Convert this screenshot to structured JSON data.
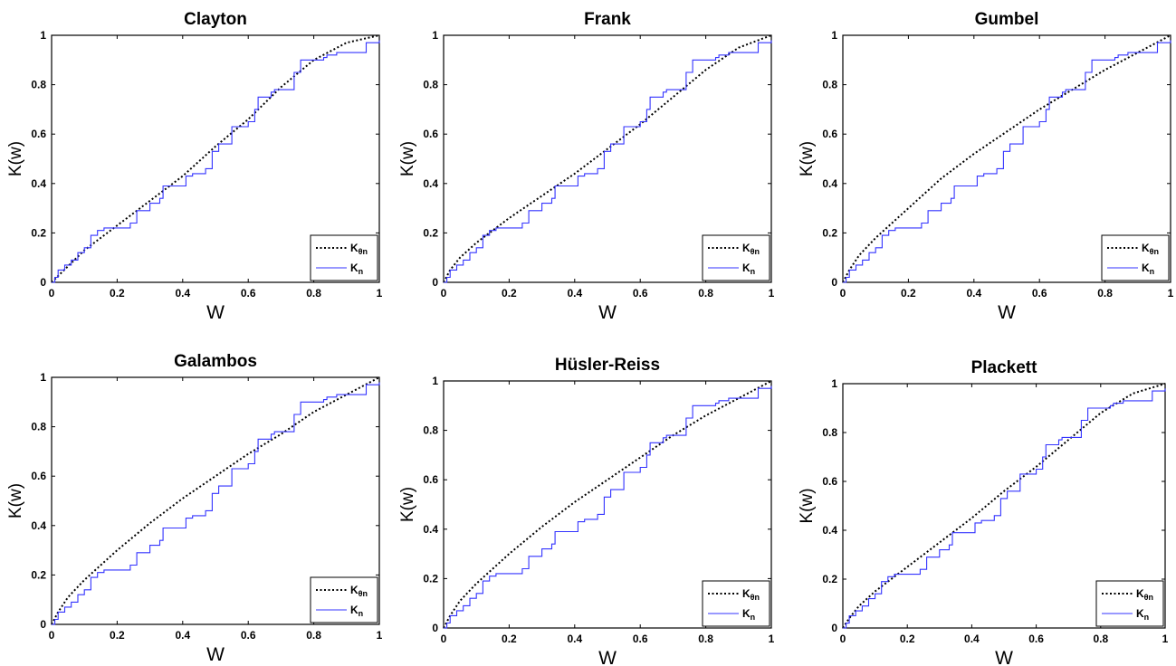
{
  "chart_data": [
    {
      "type": "line",
      "title": "Clayton",
      "xlabel": "W",
      "ylabel": "K(w)",
      "xlim": [
        0,
        1
      ],
      "ylim": [
        0,
        1
      ],
      "xticks": [
        "0",
        "0.2",
        "0.4",
        "0.6",
        "0.8",
        "1"
      ],
      "yticks": [
        "0",
        "0.2",
        "0.4",
        "0.6",
        "0.8",
        "1"
      ],
      "legend_position": "bottom-right",
      "series": [
        {
          "name": "K_θn",
          "style": "dotted",
          "color": "#000000",
          "x": [
            0,
            0.1,
            0.2,
            0.3,
            0.4,
            0.5,
            0.6,
            0.7,
            0.8,
            0.9,
            1
          ],
          "y": [
            0,
            0.13,
            0.23,
            0.33,
            0.43,
            0.55,
            0.66,
            0.79,
            0.9,
            0.97,
            1
          ]
        },
        {
          "name": "K_n",
          "style": "step",
          "color": "#3333ff",
          "x": [
            0,
            0.01,
            0.02,
            0.04,
            0.06,
            0.08,
            0.1,
            0.12,
            0.14,
            0.16,
            0.24,
            0.26,
            0.3,
            0.33,
            0.34,
            0.41,
            0.43,
            0.47,
            0.49,
            0.51,
            0.55,
            0.58,
            0.6,
            0.62,
            0.63,
            0.67,
            0.68,
            0.72,
            0.74,
            0.76,
            0.8,
            0.83,
            0.84,
            0.87,
            0.88,
            0.96,
            1
          ],
          "y": [
            0,
            0.02,
            0.05,
            0.07,
            0.09,
            0.12,
            0.14,
            0.19,
            0.21,
            0.22,
            0.24,
            0.29,
            0.32,
            0.34,
            0.39,
            0.43,
            0.44,
            0.46,
            0.53,
            0.56,
            0.63,
            0.63,
            0.65,
            0.7,
            0.75,
            0.77,
            0.78,
            0.78,
            0.85,
            0.9,
            0.9,
            0.91,
            0.92,
            0.93,
            0.93,
            0.97,
            0.98
          ]
        }
      ]
    },
    {
      "type": "line",
      "title": "Frank",
      "xlabel": "W",
      "ylabel": "K(w)",
      "xlim": [
        0,
        1
      ],
      "ylim": [
        0,
        1
      ],
      "xticks": [
        "0",
        "0.2",
        "0.4",
        "0.6",
        "0.8",
        "1"
      ],
      "yticks": [
        "0",
        "0.2",
        "0.4",
        "0.6",
        "0.8",
        "1"
      ],
      "legend_position": "bottom-right",
      "series": [
        {
          "name": "K_θn",
          "style": "dotted",
          "color": "#000000",
          "x": [
            0,
            0.02,
            0.05,
            0.1,
            0.2,
            0.3,
            0.4,
            0.5,
            0.6,
            0.7,
            0.8,
            0.9,
            1
          ],
          "y": [
            0,
            0.05,
            0.1,
            0.16,
            0.26,
            0.35,
            0.44,
            0.54,
            0.64,
            0.75,
            0.86,
            0.95,
            1
          ]
        },
        {
          "name": "K_n",
          "style": "step",
          "color": "#3333ff",
          "x": [
            0,
            0.01,
            0.02,
            0.04,
            0.06,
            0.08,
            0.1,
            0.12,
            0.14,
            0.16,
            0.24,
            0.26,
            0.3,
            0.33,
            0.34,
            0.41,
            0.43,
            0.47,
            0.49,
            0.51,
            0.55,
            0.58,
            0.6,
            0.62,
            0.63,
            0.67,
            0.68,
            0.72,
            0.74,
            0.76,
            0.8,
            0.83,
            0.84,
            0.87,
            0.88,
            0.96,
            1
          ],
          "y": [
            0,
            0.02,
            0.05,
            0.07,
            0.09,
            0.12,
            0.14,
            0.19,
            0.21,
            0.22,
            0.24,
            0.29,
            0.32,
            0.34,
            0.39,
            0.43,
            0.44,
            0.46,
            0.53,
            0.56,
            0.63,
            0.63,
            0.65,
            0.7,
            0.75,
            0.77,
            0.78,
            0.78,
            0.85,
            0.9,
            0.9,
            0.91,
            0.92,
            0.93,
            0.93,
            0.97,
            0.98
          ]
        }
      ]
    },
    {
      "type": "line",
      "title": "Gumbel",
      "xlabel": "W",
      "ylabel": "K(w)",
      "xlim": [
        0,
        1
      ],
      "ylim": [
        0,
        1
      ],
      "xticks": [
        "0",
        "0.2",
        "0.4",
        "0.6",
        "0.8",
        "1"
      ],
      "yticks": [
        "0",
        "0.2",
        "0.4",
        "0.6",
        "0.8",
        "1"
      ],
      "legend_position": "bottom-right",
      "series": [
        {
          "name": "K_θn",
          "style": "dotted",
          "color": "#000000",
          "x": [
            0,
            0.02,
            0.05,
            0.1,
            0.2,
            0.3,
            0.4,
            0.5,
            0.6,
            0.7,
            0.8,
            0.9,
            1
          ],
          "y": [
            0,
            0.05,
            0.11,
            0.18,
            0.3,
            0.42,
            0.52,
            0.61,
            0.7,
            0.78,
            0.86,
            0.93,
            1
          ]
        },
        {
          "name": "K_n",
          "style": "step",
          "color": "#3333ff",
          "x": [
            0,
            0.01,
            0.02,
            0.04,
            0.06,
            0.08,
            0.1,
            0.12,
            0.14,
            0.16,
            0.24,
            0.26,
            0.3,
            0.33,
            0.34,
            0.41,
            0.43,
            0.47,
            0.49,
            0.51,
            0.55,
            0.58,
            0.6,
            0.62,
            0.63,
            0.67,
            0.68,
            0.72,
            0.74,
            0.76,
            0.8,
            0.83,
            0.84,
            0.87,
            0.88,
            0.96,
            1
          ],
          "y": [
            0,
            0.02,
            0.05,
            0.07,
            0.09,
            0.12,
            0.14,
            0.19,
            0.21,
            0.22,
            0.24,
            0.29,
            0.32,
            0.34,
            0.39,
            0.43,
            0.44,
            0.46,
            0.53,
            0.56,
            0.63,
            0.63,
            0.65,
            0.7,
            0.75,
            0.77,
            0.78,
            0.78,
            0.85,
            0.9,
            0.9,
            0.91,
            0.92,
            0.93,
            0.93,
            0.97,
            0.98
          ]
        }
      ]
    },
    {
      "type": "line",
      "title": "Galambos",
      "xlabel": "W",
      "ylabel": "K(w)",
      "xlim": [
        0,
        1
      ],
      "ylim": [
        0,
        1
      ],
      "xticks": [
        "0",
        "0.2",
        "0.4",
        "0.6",
        "0.8",
        "1"
      ],
      "yticks": [
        "0",
        "0.2",
        "0.4",
        "0.6",
        "0.8",
        "1"
      ],
      "legend_position": "bottom-right",
      "series": [
        {
          "name": "K_θn",
          "style": "dotted",
          "color": "#000000",
          "x": [
            0,
            0.02,
            0.05,
            0.1,
            0.2,
            0.3,
            0.4,
            0.5,
            0.6,
            0.7,
            0.8,
            0.9,
            1
          ],
          "y": [
            0,
            0.05,
            0.11,
            0.18,
            0.3,
            0.41,
            0.51,
            0.6,
            0.69,
            0.77,
            0.86,
            0.93,
            1
          ]
        },
        {
          "name": "K_n",
          "style": "step",
          "color": "#3333ff",
          "x": [
            0,
            0.01,
            0.02,
            0.04,
            0.06,
            0.08,
            0.1,
            0.12,
            0.14,
            0.16,
            0.24,
            0.26,
            0.3,
            0.33,
            0.34,
            0.41,
            0.43,
            0.47,
            0.49,
            0.51,
            0.55,
            0.58,
            0.6,
            0.62,
            0.63,
            0.67,
            0.68,
            0.72,
            0.74,
            0.76,
            0.8,
            0.83,
            0.84,
            0.87,
            0.88,
            0.96,
            1
          ],
          "y": [
            0,
            0.02,
            0.05,
            0.07,
            0.09,
            0.12,
            0.14,
            0.19,
            0.21,
            0.22,
            0.24,
            0.29,
            0.32,
            0.34,
            0.39,
            0.43,
            0.44,
            0.46,
            0.53,
            0.56,
            0.63,
            0.63,
            0.65,
            0.7,
            0.75,
            0.77,
            0.78,
            0.78,
            0.85,
            0.9,
            0.9,
            0.91,
            0.92,
            0.93,
            0.93,
            0.97,
            0.98
          ]
        }
      ]
    },
    {
      "type": "line",
      "title": "Hüsler-Reiss",
      "xlabel": "W",
      "ylabel": "K(w)",
      "xlim": [
        0,
        1
      ],
      "ylim": [
        0,
        1
      ],
      "xticks": [
        "0",
        "0.2",
        "0.4",
        "0.6",
        "0.8",
        "1"
      ],
      "yticks": [
        "0",
        "0.2",
        "0.4",
        "0.6",
        "0.8",
        "1"
      ],
      "legend_position": "bottom-right",
      "series": [
        {
          "name": "K_θn",
          "style": "dotted",
          "color": "#000000",
          "x": [
            0,
            0.02,
            0.05,
            0.1,
            0.2,
            0.3,
            0.4,
            0.5,
            0.6,
            0.7,
            0.8,
            0.9,
            1
          ],
          "y": [
            0,
            0.05,
            0.11,
            0.18,
            0.3,
            0.41,
            0.51,
            0.6,
            0.69,
            0.78,
            0.86,
            0.93,
            1
          ]
        },
        {
          "name": "K_n",
          "style": "step",
          "color": "#3333ff",
          "x": [
            0,
            0.01,
            0.02,
            0.04,
            0.06,
            0.08,
            0.1,
            0.12,
            0.14,
            0.16,
            0.24,
            0.26,
            0.3,
            0.33,
            0.34,
            0.41,
            0.43,
            0.47,
            0.49,
            0.51,
            0.55,
            0.58,
            0.6,
            0.62,
            0.63,
            0.67,
            0.68,
            0.72,
            0.74,
            0.76,
            0.8,
            0.83,
            0.84,
            0.87,
            0.88,
            0.96,
            1
          ],
          "y": [
            0,
            0.02,
            0.05,
            0.07,
            0.09,
            0.12,
            0.14,
            0.19,
            0.21,
            0.22,
            0.24,
            0.29,
            0.32,
            0.34,
            0.39,
            0.43,
            0.44,
            0.46,
            0.53,
            0.56,
            0.63,
            0.63,
            0.65,
            0.7,
            0.75,
            0.77,
            0.78,
            0.78,
            0.85,
            0.9,
            0.9,
            0.91,
            0.92,
            0.93,
            0.93,
            0.97,
            0.98
          ]
        }
      ]
    },
    {
      "type": "line",
      "title": "Plackett",
      "xlabel": "W",
      "ylabel": "K(w)",
      "xlim": [
        0,
        1
      ],
      "ylim": [
        0,
        1
      ],
      "xticks": [
        "0",
        "0.2",
        "0.4",
        "0.6",
        "0.8",
        "1"
      ],
      "yticks": [
        "0",
        "0.2",
        "0.4",
        "0.6",
        "0.8",
        "1"
      ],
      "legend_position": "bottom-right",
      "series": [
        {
          "name": "K_θn",
          "style": "dotted",
          "color": "#000000",
          "x": [
            0,
            0.02,
            0.05,
            0.1,
            0.2,
            0.3,
            0.4,
            0.5,
            0.6,
            0.7,
            0.8,
            0.9,
            1
          ],
          "y": [
            0,
            0.04,
            0.09,
            0.15,
            0.25,
            0.35,
            0.45,
            0.56,
            0.66,
            0.77,
            0.88,
            0.96,
            1
          ]
        },
        {
          "name": "K_n",
          "style": "step",
          "color": "#3333ff",
          "x": [
            0,
            0.01,
            0.02,
            0.04,
            0.06,
            0.08,
            0.1,
            0.12,
            0.14,
            0.16,
            0.24,
            0.26,
            0.3,
            0.33,
            0.34,
            0.41,
            0.43,
            0.47,
            0.49,
            0.51,
            0.55,
            0.58,
            0.6,
            0.62,
            0.63,
            0.67,
            0.68,
            0.72,
            0.74,
            0.76,
            0.8,
            0.83,
            0.84,
            0.87,
            0.88,
            0.96,
            1
          ],
          "y": [
            0,
            0.02,
            0.05,
            0.07,
            0.09,
            0.12,
            0.14,
            0.19,
            0.21,
            0.22,
            0.24,
            0.29,
            0.32,
            0.34,
            0.39,
            0.43,
            0.44,
            0.46,
            0.53,
            0.56,
            0.63,
            0.63,
            0.65,
            0.7,
            0.75,
            0.77,
            0.78,
            0.78,
            0.85,
            0.9,
            0.9,
            0.91,
            0.92,
            0.93,
            0.93,
            0.97,
            0.98
          ]
        }
      ]
    }
  ]
}
